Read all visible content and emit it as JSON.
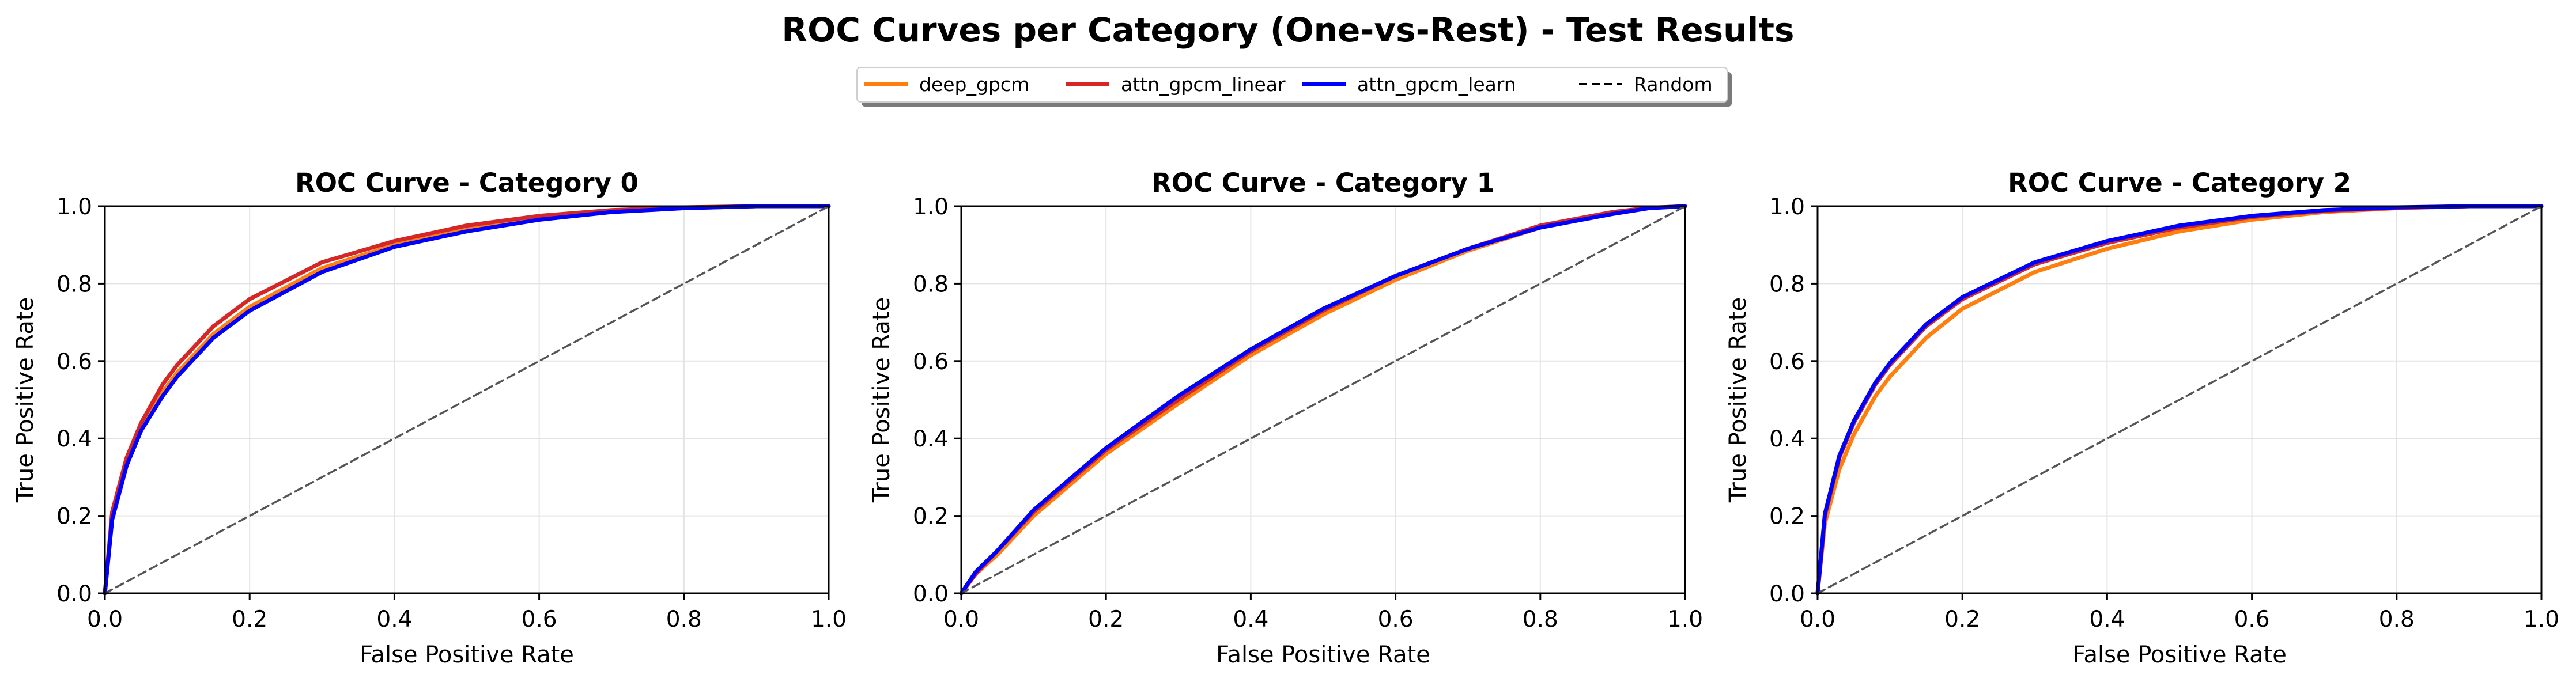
{
  "figure": {
    "title": "ROC Curves per Category (One-vs-Rest) - Test Results"
  },
  "legend": {
    "placement": "top-center",
    "items": [
      {
        "label": "deep_gpcm",
        "color": "#ff7f0e",
        "style": "solid"
      },
      {
        "label": "attn_gpcm_linear",
        "color": "#d62728",
        "style": "solid"
      },
      {
        "label": "attn_gpcm_learn",
        "color": "#0000ff",
        "style": "solid"
      },
      {
        "label": "Random",
        "color": "#000000",
        "style": "dashed"
      }
    ]
  },
  "chart_data": [
    {
      "type": "line",
      "title": "ROC Curve - Category 0",
      "xlabel": "False Positive Rate",
      "ylabel": "True Positive Rate",
      "xlim": [
        0,
        1
      ],
      "ylim": [
        0,
        1
      ],
      "xticks": [
        "0.0",
        "0.2",
        "0.4",
        "0.6",
        "0.8",
        "1.0"
      ],
      "yticks": [
        "0.0",
        "0.2",
        "0.4",
        "0.6",
        "0.8",
        "1.0"
      ],
      "grid": true,
      "series": [
        {
          "name": "deep_gpcm",
          "color": "#ff7f0e",
          "x": [
            0,
            0.01,
            0.03,
            0.05,
            0.08,
            0.1,
            0.15,
            0.2,
            0.3,
            0.4,
            0.5,
            0.6,
            0.7,
            0.8,
            0.9,
            1.0
          ],
          "y": [
            0,
            0.19,
            0.33,
            0.42,
            0.52,
            0.57,
            0.67,
            0.74,
            0.84,
            0.9,
            0.94,
            0.97,
            0.985,
            0.995,
            1.0,
            1.0
          ]
        },
        {
          "name": "attn_gpcm_linear",
          "color": "#d62728",
          "x": [
            0,
            0.01,
            0.03,
            0.05,
            0.08,
            0.1,
            0.15,
            0.2,
            0.3,
            0.4,
            0.5,
            0.6,
            0.7,
            0.8,
            0.9,
            1.0
          ],
          "y": [
            0,
            0.21,
            0.35,
            0.44,
            0.54,
            0.59,
            0.69,
            0.76,
            0.855,
            0.91,
            0.95,
            0.975,
            0.99,
            0.997,
            1.0,
            1.0
          ]
        },
        {
          "name": "attn_gpcm_learn",
          "color": "#0000ff",
          "x": [
            0,
            0.01,
            0.03,
            0.05,
            0.08,
            0.1,
            0.15,
            0.2,
            0.3,
            0.4,
            0.5,
            0.6,
            0.7,
            0.8,
            0.9,
            1.0
          ],
          "y": [
            0,
            0.19,
            0.33,
            0.42,
            0.51,
            0.56,
            0.66,
            0.73,
            0.83,
            0.895,
            0.935,
            0.965,
            0.985,
            0.995,
            1.0,
            1.0
          ]
        },
        {
          "name": "Random",
          "color": "#555555",
          "dashed": true,
          "x": [
            0,
            1
          ],
          "y": [
            0,
            1
          ]
        }
      ]
    },
    {
      "type": "line",
      "title": "ROC Curve - Category 1",
      "xlabel": "False Positive Rate",
      "ylabel": "True Positive Rate",
      "xlim": [
        0,
        1
      ],
      "ylim": [
        0,
        1
      ],
      "xticks": [
        "0.0",
        "0.2",
        "0.4",
        "0.6",
        "0.8",
        "1.0"
      ],
      "yticks": [
        "0.0",
        "0.2",
        "0.4",
        "0.6",
        "0.8",
        "1.0"
      ],
      "grid": true,
      "series": [
        {
          "name": "deep_gpcm",
          "color": "#ff7f0e",
          "x": [
            0,
            0.02,
            0.05,
            0.1,
            0.2,
            0.3,
            0.4,
            0.5,
            0.6,
            0.7,
            0.8,
            0.9,
            0.95,
            1.0
          ],
          "y": [
            0,
            0.05,
            0.1,
            0.2,
            0.36,
            0.49,
            0.615,
            0.72,
            0.81,
            0.885,
            0.945,
            0.985,
            0.996,
            1.0
          ]
        },
        {
          "name": "attn_gpcm_linear",
          "color": "#d62728",
          "x": [
            0,
            0.02,
            0.05,
            0.1,
            0.2,
            0.3,
            0.4,
            0.5,
            0.6,
            0.7,
            0.8,
            0.9,
            0.95,
            1.0
          ],
          "y": [
            0,
            0.05,
            0.11,
            0.21,
            0.37,
            0.5,
            0.625,
            0.73,
            0.82,
            0.89,
            0.95,
            0.985,
            0.996,
            1.0
          ]
        },
        {
          "name": "attn_gpcm_learn",
          "color": "#0000ff",
          "x": [
            0,
            0.02,
            0.05,
            0.1,
            0.2,
            0.3,
            0.4,
            0.5,
            0.6,
            0.7,
            0.8,
            0.9,
            0.95,
            1.0
          ],
          "y": [
            0,
            0.055,
            0.11,
            0.215,
            0.375,
            0.51,
            0.63,
            0.735,
            0.82,
            0.89,
            0.945,
            0.98,
            0.995,
            1.0
          ]
        },
        {
          "name": "Random",
          "color": "#555555",
          "dashed": true,
          "x": [
            0,
            1
          ],
          "y": [
            0,
            1
          ]
        }
      ]
    },
    {
      "type": "line",
      "title": "ROC Curve - Category 2",
      "xlabel": "False Positive Rate",
      "ylabel": "True Positive Rate",
      "xlim": [
        0,
        1
      ],
      "ylim": [
        0,
        1
      ],
      "xticks": [
        "0.0",
        "0.2",
        "0.4",
        "0.6",
        "0.8",
        "1.0"
      ],
      "yticks": [
        "0.0",
        "0.2",
        "0.4",
        "0.6",
        "0.8",
        "1.0"
      ],
      "grid": true,
      "series": [
        {
          "name": "deep_gpcm",
          "color": "#ff7f0e",
          "x": [
            0,
            0.01,
            0.03,
            0.05,
            0.08,
            0.1,
            0.15,
            0.2,
            0.3,
            0.4,
            0.5,
            0.6,
            0.7,
            0.8,
            0.9,
            1.0
          ],
          "y": [
            0,
            0.18,
            0.32,
            0.41,
            0.51,
            0.56,
            0.66,
            0.735,
            0.83,
            0.89,
            0.935,
            0.965,
            0.985,
            0.995,
            1.0,
            1.0
          ]
        },
        {
          "name": "attn_gpcm_linear",
          "color": "#d62728",
          "x": [
            0,
            0.01,
            0.03,
            0.05,
            0.08,
            0.1,
            0.15,
            0.2,
            0.3,
            0.4,
            0.5,
            0.6,
            0.7,
            0.8,
            0.9,
            1.0
          ],
          "y": [
            0,
            0.2,
            0.35,
            0.44,
            0.54,
            0.59,
            0.69,
            0.76,
            0.85,
            0.905,
            0.945,
            0.972,
            0.988,
            0.996,
            1.0,
            1.0
          ]
        },
        {
          "name": "attn_gpcm_learn",
          "color": "#0000ff",
          "x": [
            0,
            0.01,
            0.03,
            0.05,
            0.08,
            0.1,
            0.15,
            0.2,
            0.3,
            0.4,
            0.5,
            0.6,
            0.7,
            0.8,
            0.9,
            1.0
          ],
          "y": [
            0,
            0.205,
            0.355,
            0.445,
            0.545,
            0.595,
            0.695,
            0.765,
            0.855,
            0.91,
            0.95,
            0.975,
            0.99,
            0.997,
            1.0,
            1.0
          ]
        },
        {
          "name": "Random",
          "color": "#555555",
          "dashed": true,
          "x": [
            0,
            1
          ],
          "y": [
            0,
            1
          ]
        }
      ]
    }
  ]
}
